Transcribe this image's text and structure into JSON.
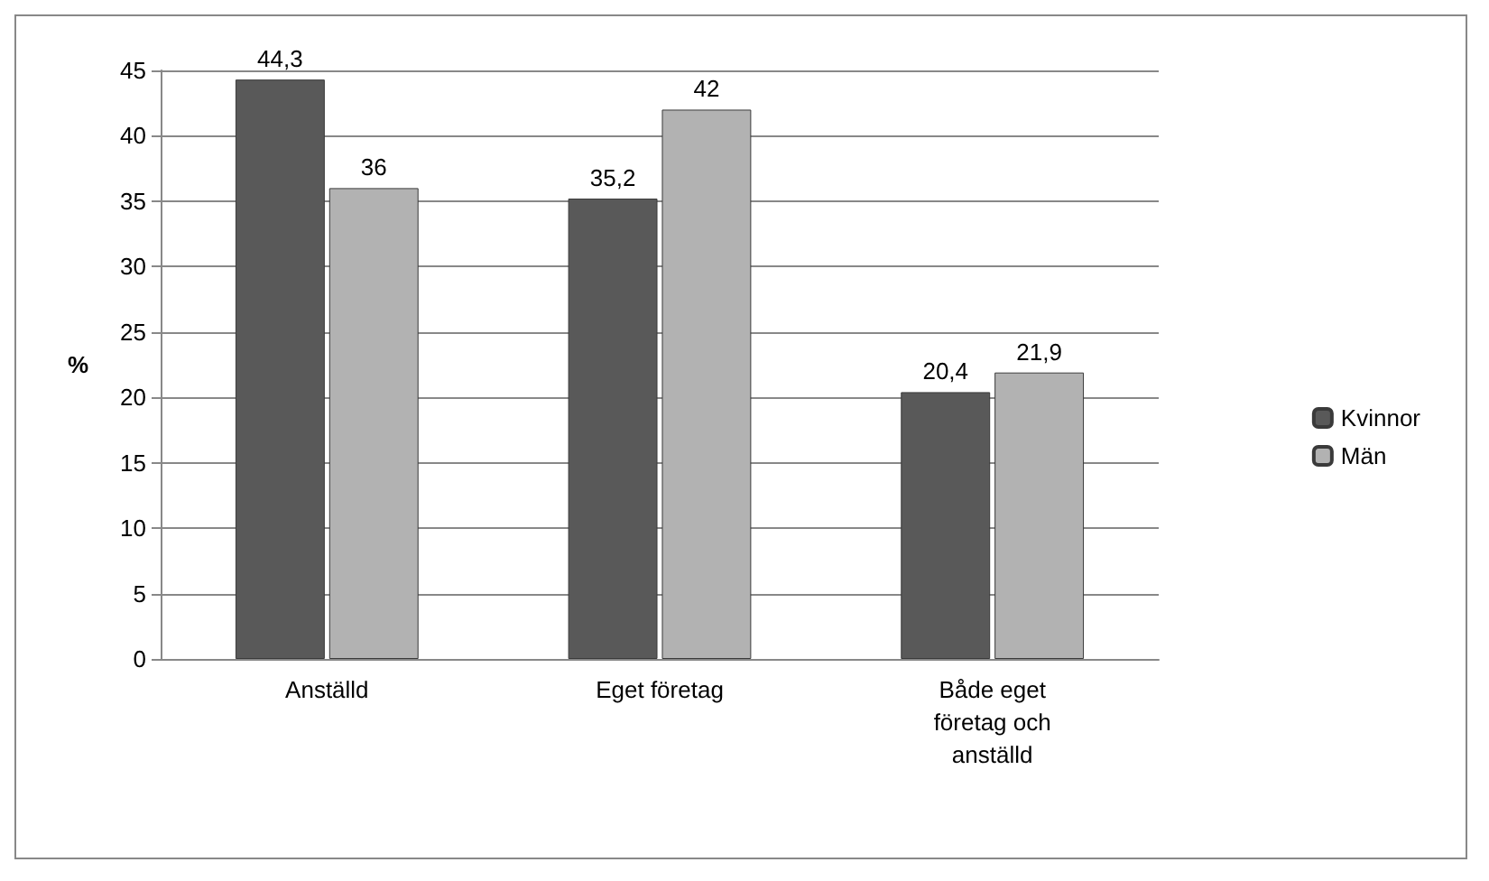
{
  "chart_data": {
    "type": "bar",
    "ylabel": "%",
    "categories": [
      "Anställd",
      "Eget företag",
      "Både eget\nföretag och\nanställd"
    ],
    "series": [
      {
        "name": "Kvinnor",
        "color": "#595959",
        "values": [
          44.3,
          35.2,
          20.4
        ],
        "value_labels": [
          "44,3",
          "35,2",
          "20,4"
        ]
      },
      {
        "name": "Män",
        "color": "#b2b2b2",
        "values": [
          36,
          42,
          21.9
        ],
        "value_labels": [
          "36",
          "42",
          "21,9"
        ]
      }
    ],
    "ylim": [
      0,
      45
    ],
    "yticks": [
      0,
      5,
      10,
      15,
      20,
      25,
      30,
      35,
      40,
      45
    ],
    "grid": "y",
    "legend": "right"
  }
}
